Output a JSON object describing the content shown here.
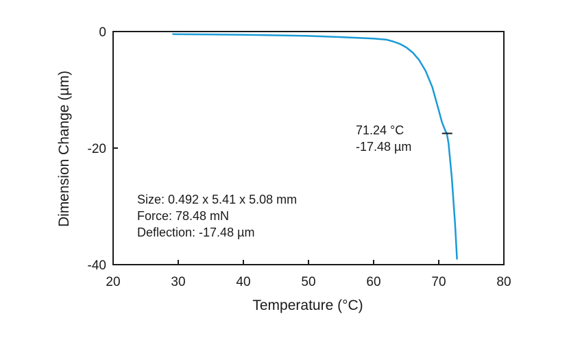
{
  "chart_data": {
    "type": "line",
    "xlabel": "Temperature (°C)",
    "ylabel": "Dimension Change (µm)",
    "xlim": [
      20,
      80
    ],
    "ylim": [
      -40,
      0
    ],
    "x_ticks": [
      20,
      30,
      40,
      50,
      60,
      70,
      80
    ],
    "y_ticks": [
      0,
      -20,
      -40
    ],
    "x_tick_labels": [
      "20",
      "30",
      "40",
      "50",
      "60",
      "70",
      "80"
    ],
    "y_tick_labels": [
      "0",
      "-20",
      "-40"
    ],
    "grid": false,
    "series_color": "#1a9ad6",
    "series": [
      {
        "x": [
          29.2,
          35,
          40,
          45,
          50,
          55,
          58,
          60,
          62,
          63,
          64,
          65,
          66,
          67,
          68,
          69,
          70,
          70.5,
          71,
          71.24,
          71.5,
          72,
          72.5,
          72.8
        ],
        "y": [
          -0.45,
          -0.5,
          -0.55,
          -0.65,
          -0.75,
          -0.95,
          -1.1,
          -1.2,
          -1.4,
          -1.7,
          -2.1,
          -2.7,
          -3.6,
          -4.9,
          -6.8,
          -9.5,
          -13.5,
          -15.6,
          -17.0,
          -17.48,
          -19.2,
          -25.0,
          -33.0,
          -39.0
        ]
      }
    ],
    "marker": {
      "x": 71.24,
      "y": -17.48,
      "label_temp": "71.24 °C",
      "label_dim": "-17.48 µm"
    },
    "annotations": [
      "Size: 0.492 x 5.41 x 5.08 mm",
      "Force: 78.48 mN",
      "Deflection: -17.48 µm"
    ]
  }
}
